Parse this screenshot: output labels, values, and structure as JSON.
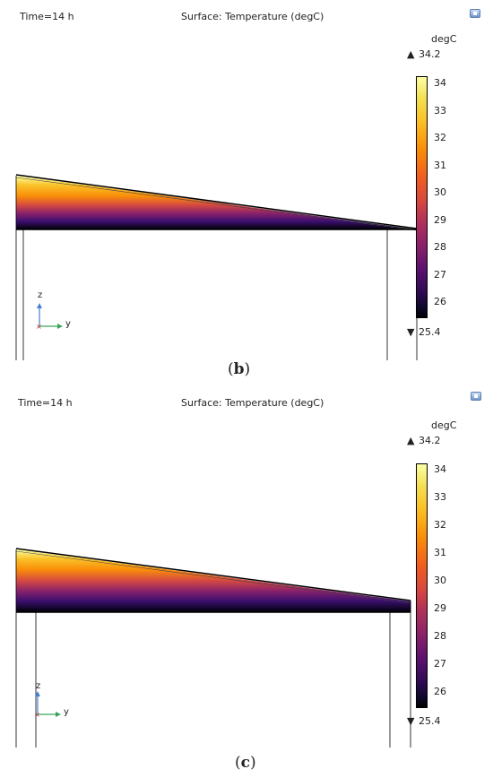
{
  "panels": [
    {
      "time_label": "Time=14 h",
      "title": "Surface: Temperature (degC)",
      "colorbar": {
        "unit": "degC",
        "max_label": "34.2",
        "min_label": "25.4",
        "ticks": [
          "34",
          "33",
          "32",
          "31",
          "30",
          "29",
          "28",
          "27",
          "26"
        ]
      },
      "axes": {
        "z": "z",
        "y": "y"
      },
      "caption": "b"
    },
    {
      "time_label": "Time=14 h",
      "title": "Surface: Temperature (degC)",
      "colorbar": {
        "unit": "degC",
        "max_label": "34.2",
        "min_label": "25.4",
        "ticks": [
          "34",
          "33",
          "32",
          "31",
          "30",
          "29",
          "28",
          "27",
          "26"
        ]
      },
      "axes": {
        "z": "z",
        "y": "y"
      },
      "caption": "c"
    }
  ],
  "colors": {
    "hot": "#fcffa4",
    "mid": "#d44842",
    "cold": "#000004"
  },
  "icons": [
    "image-icon",
    "image-icon"
  ]
}
